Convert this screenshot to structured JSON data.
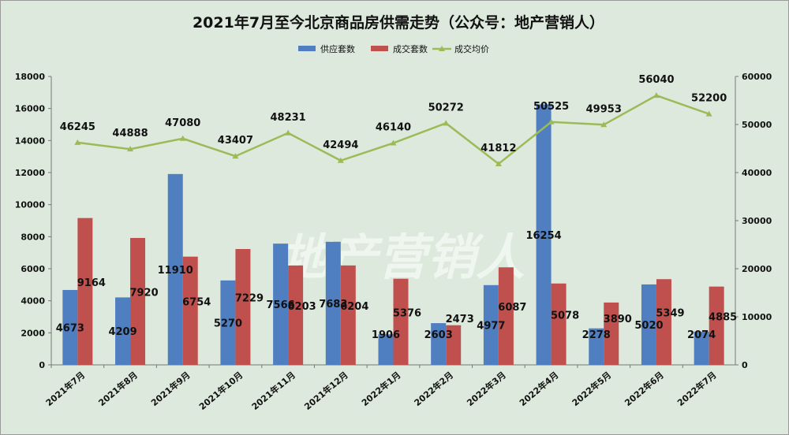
{
  "chart_data": {
    "type": "bar",
    "title": "2021年7月至今北京商品房供需走势（公众号：地产营销人）",
    "watermark": "地产营销人",
    "categories": [
      "2021年7月",
      "2021年8月",
      "2021年9月",
      "2021年10月",
      "2021年11月",
      "2021年12月",
      "2022年1月",
      "2022年2月",
      "2022年3月",
      "2022年4月",
      "2022年5月",
      "2022年6月",
      "2022年7月"
    ],
    "series": [
      {
        "name": "供应套数",
        "type": "bar",
        "axis": "left",
        "color": "#4f7ec1",
        "values": [
          4673,
          4209,
          11910,
          5270,
          7566,
          7683,
          1906,
          2603,
          4977,
          16254,
          2278,
          5020,
          2074
        ]
      },
      {
        "name": "成交套数",
        "type": "bar",
        "axis": "left",
        "color": "#c0504d",
        "values": [
          9164,
          7920,
          6754,
          7229,
          6203,
          6204,
          5376,
          2473,
          6087,
          5078,
          3890,
          5349,
          4885
        ]
      },
      {
        "name": "成交均价",
        "type": "line",
        "axis": "right",
        "color": "#9bbb59",
        "values": [
          46245,
          44888,
          47080,
          43407,
          48231,
          42494,
          46140,
          50272,
          41812,
          50525,
          49953,
          56040,
          52200
        ]
      }
    ],
    "y_left": {
      "min": 0,
      "max": 18000,
      "step": 2000,
      "ticks": [
        "0",
        "2000",
        "4000",
        "6000",
        "8000",
        "10000",
        "12000",
        "14000",
        "16000",
        "18000"
      ]
    },
    "y_right": {
      "min": 0,
      "max": 60000,
      "step": 10000,
      "ticks": [
        "0",
        "10000",
        "20000",
        "30000",
        "40000",
        "50000",
        "60000"
      ]
    },
    "legend": "top-center",
    "grid": false
  }
}
